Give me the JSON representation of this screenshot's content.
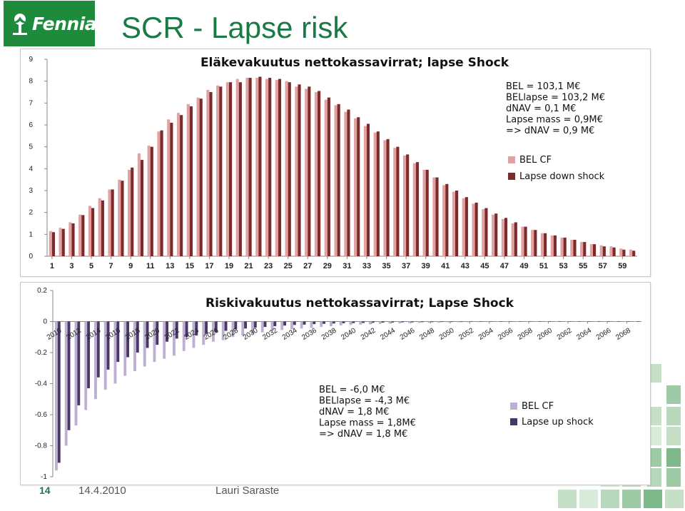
{
  "slide": {
    "title": "SCR - Lapse risk",
    "logo_text": "Fennia",
    "page_number": "14",
    "date": "14.4.2010",
    "author": "Lauri Saraste"
  },
  "colors": {
    "brand_green": "#1e8a3c",
    "title_green": "#1a7a45",
    "pink": "#e3a2a2",
    "maroon": "#7b2b2b",
    "lavender": "#bdb0d1",
    "purple": "#4a3768"
  },
  "chart_data": [
    {
      "type": "bar",
      "title": "Eläkevakuutus nettokassavirrat; lapse Shock",
      "x": [
        1,
        2,
        3,
        4,
        5,
        6,
        7,
        8,
        9,
        10,
        11,
        12,
        13,
        14,
        15,
        16,
        17,
        18,
        19,
        20,
        21,
        22,
        23,
        24,
        25,
        26,
        27,
        28,
        29,
        30,
        31,
        32,
        33,
        34,
        35,
        36,
        37,
        38,
        39,
        40,
        41,
        42,
        43,
        44,
        45,
        46,
        47,
        48,
        49,
        50,
        51,
        52,
        53,
        54,
        55,
        56,
        57,
        58,
        59,
        60
      ],
      "x_tick_labels": [
        "1",
        "3",
        "5",
        "7",
        "9",
        "11",
        "13",
        "15",
        "17",
        "19",
        "21",
        "23",
        "25",
        "27",
        "29",
        "31",
        "33",
        "35",
        "37",
        "39",
        "41",
        "43",
        "45",
        "47",
        "49",
        "51",
        "53",
        "55",
        "57",
        "59"
      ],
      "ylim": [
        0,
        9
      ],
      "y_ticks": [
        0,
        1,
        2,
        3,
        4,
        5,
        6,
        7,
        8,
        9
      ],
      "grid": false,
      "legend_position": "right",
      "series": [
        {
          "name": "BEL CF",
          "color": "#e3a2a2",
          "values": [
            1.15,
            1.3,
            1.55,
            1.9,
            2.3,
            2.65,
            3.05,
            3.5,
            3.95,
            4.7,
            5.05,
            5.7,
            6.25,
            6.55,
            6.95,
            7.25,
            7.6,
            7.8,
            7.95,
            8.1,
            8.15,
            8.15,
            8.1,
            8.05,
            8.0,
            7.75,
            7.65,
            7.5,
            7.15,
            6.9,
            6.6,
            6.3,
            5.95,
            5.65,
            5.3,
            4.95,
            4.6,
            4.25,
            3.95,
            3.6,
            3.25,
            2.95,
            2.65,
            2.4,
            2.15,
            1.9,
            1.7,
            1.5,
            1.35,
            1.2,
            1.05,
            0.95,
            0.85,
            0.75,
            0.65,
            0.55,
            0.5,
            0.45,
            0.35,
            0.3
          ]
        },
        {
          "name": "Lapse down shock",
          "color": "#7b2b2b",
          "values": [
            1.1,
            1.25,
            1.5,
            1.88,
            2.2,
            2.55,
            3.05,
            3.45,
            4.05,
            4.4,
            5.0,
            5.75,
            6.1,
            6.45,
            6.85,
            7.2,
            7.5,
            7.75,
            7.95,
            7.95,
            8.15,
            8.2,
            8.15,
            8.1,
            7.95,
            7.85,
            7.75,
            7.55,
            7.25,
            6.95,
            6.7,
            6.35,
            6.05,
            5.7,
            5.35,
            5.0,
            4.65,
            4.3,
            3.95,
            3.6,
            3.3,
            3.0,
            2.7,
            2.45,
            2.2,
            1.95,
            1.75,
            1.55,
            1.35,
            1.2,
            1.05,
            0.95,
            0.85,
            0.75,
            0.65,
            0.55,
            0.45,
            0.4,
            0.3,
            0.25
          ]
        }
      ],
      "annotations": [
        "BEL = 103,1 M€",
        "BELlapse = 103,2 M€",
        "dNAV = 0,1 M€",
        "Lapse mass = 0,9M€",
        "=> dNAV = 0,9 M€"
      ]
    },
    {
      "type": "bar",
      "title": "Riskivakuutus nettokassavirrat; Lapse Shock",
      "x": [
        2010,
        2011,
        2012,
        2013,
        2014,
        2015,
        2016,
        2017,
        2018,
        2019,
        2020,
        2021,
        2022,
        2023,
        2024,
        2025,
        2026,
        2027,
        2028,
        2029,
        2030,
        2031,
        2032,
        2033,
        2034,
        2035,
        2036,
        2037,
        2038,
        2039,
        2040,
        2041,
        2042,
        2043,
        2044,
        2045,
        2046,
        2047,
        2048,
        2049,
        2050,
        2051,
        2052,
        2053,
        2054,
        2055,
        2056,
        2057,
        2058,
        2059,
        2060,
        2061,
        2062,
        2063,
        2064,
        2065,
        2066,
        2067,
        2068,
        2069
      ],
      "x_tick_labels": [
        "2010",
        "2012",
        "2014",
        "2016",
        "2018",
        "2020",
        "2022",
        "2024",
        "2026",
        "2028",
        "2030",
        "2032",
        "2034",
        "2036",
        "2038",
        "2040",
        "2042",
        "2044",
        "2046",
        "2048",
        "2050",
        "2052",
        "2054",
        "2056",
        "2058",
        "2060",
        "2062",
        "2064",
        "2066",
        "2068"
      ],
      "ylim": [
        -1,
        0.2
      ],
      "y_ticks": [
        0.2,
        0,
        -0.2,
        -0.4,
        -0.6,
        -0.8,
        -1
      ],
      "y_tick_labels": [
        "0.2",
        "0",
        "-0.2",
        "-0.4",
        "-0.6",
        "-0.8",
        "-1"
      ],
      "grid": false,
      "legend_position": "bottom-right",
      "series": [
        {
          "name": "BEL CF",
          "color": "#bdb0d1",
          "values": [
            -0.96,
            -0.8,
            -0.67,
            -0.57,
            -0.5,
            -0.44,
            -0.4,
            -0.35,
            -0.32,
            -0.29,
            -0.26,
            -0.24,
            -0.22,
            -0.19,
            -0.17,
            -0.15,
            -0.13,
            -0.12,
            -0.1,
            -0.09,
            -0.08,
            -0.07,
            -0.06,
            -0.055,
            -0.05,
            -0.045,
            -0.04,
            -0.035,
            -0.03,
            -0.025,
            -0.022,
            -0.02,
            -0.018,
            -0.015,
            -0.013,
            -0.012,
            -0.01,
            -0.009,
            -0.008,
            -0.007,
            -0.006,
            -0.005,
            -0.005,
            -0.004,
            -0.004,
            -0.003,
            -0.003,
            -0.003,
            -0.002,
            -0.002,
            -0.002,
            -0.002,
            -0.001,
            -0.001,
            -0.001,
            -0.001,
            -0.001,
            -0.001,
            -0.001,
            -0.001
          ]
        },
        {
          "name": "Lapse up shock",
          "color": "#4a3768",
          "values": [
            -0.91,
            -0.7,
            -0.54,
            -0.43,
            -0.36,
            -0.31,
            -0.26,
            -0.23,
            -0.2,
            -0.17,
            -0.15,
            -0.13,
            -0.11,
            -0.1,
            -0.09,
            -0.08,
            -0.07,
            -0.06,
            -0.05,
            -0.045,
            -0.04,
            -0.035,
            -0.03,
            -0.026,
            -0.022,
            -0.02,
            -0.017,
            -0.015,
            -0.013,
            -0.011,
            -0.01,
            -0.009,
            -0.008,
            -0.007,
            -0.006,
            -0.005,
            -0.005,
            -0.004,
            -0.004,
            -0.003,
            -0.003,
            -0.003,
            -0.002,
            -0.002,
            -0.002,
            -0.002,
            -0.001,
            -0.001,
            -0.001,
            -0.001,
            -0.001,
            -0.001,
            -0.001,
            -0.001,
            -0.001,
            -0.001,
            -0.001,
            -0.001,
            -0.001,
            -0.001
          ]
        }
      ],
      "annotations": [
        "BEL = -6,0 M€",
        "BELlapse = -4,3 M€",
        "dNAV = 1,8 M€",
        "Lapse mass = 1,8M€",
        "=> dNAV = 1,8 M€"
      ]
    }
  ]
}
